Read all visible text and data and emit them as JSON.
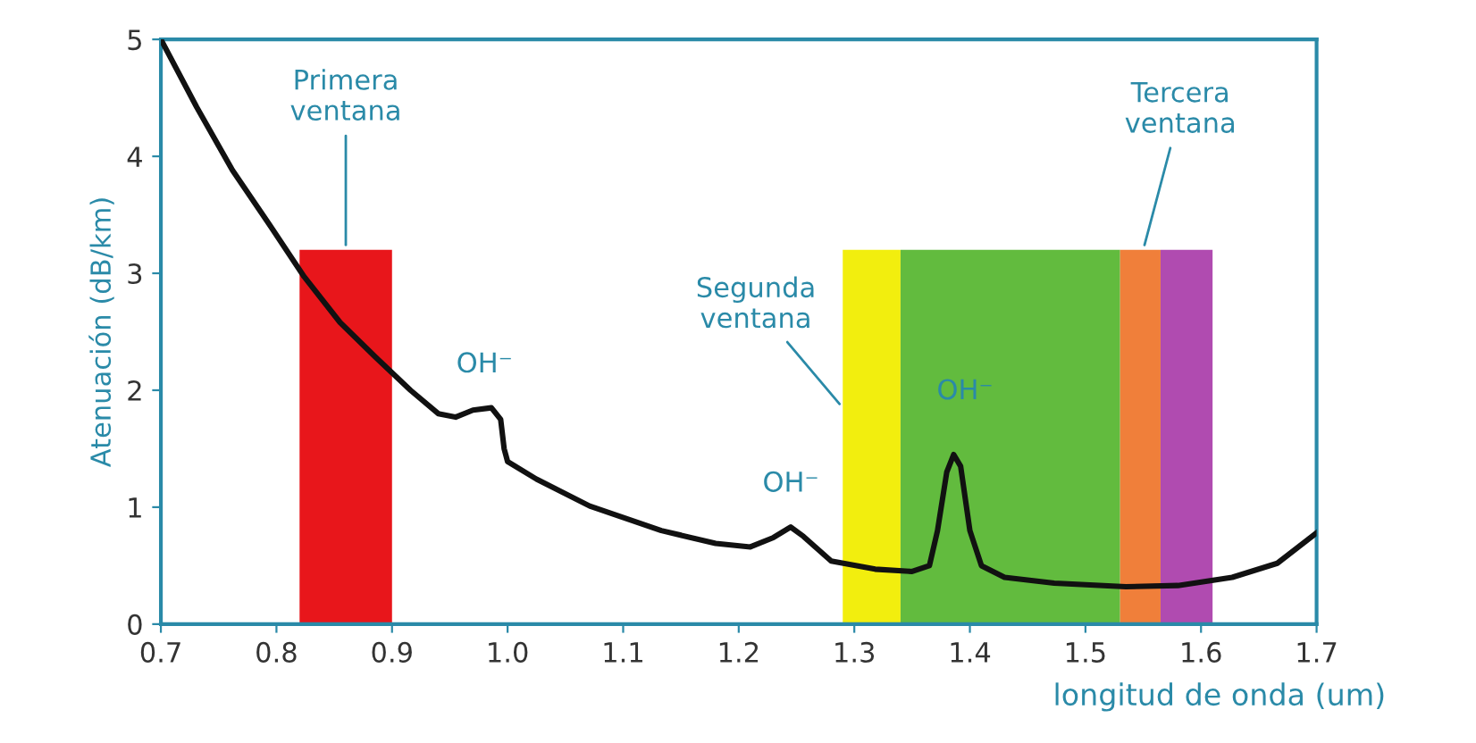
{
  "chart_data": {
    "type": "line",
    "xlabel": "longitud de onda (um)",
    "ylabel": "Atenuación (dB/km)",
    "xlim": [
      0.7,
      1.7
    ],
    "ylim": [
      0,
      5
    ],
    "xticks": [
      0.7,
      0.8,
      0.9,
      {
        "value": 1.0,
        "label": "1.0"
      },
      1.1,
      1.2,
      1.3,
      1.4,
      1.5,
      1.6,
      1.7
    ],
    "yticks": [
      0,
      1,
      2,
      3,
      4,
      5
    ],
    "grid": false,
    "legend": false,
    "series": [
      {
        "type": "area",
        "color": "#e8161b",
        "x": [
          0.82,
          0.9
        ],
        "values": [
          3.2,
          3.2
        ]
      },
      {
        "type": "area",
        "color": "#f2ee0e",
        "x": [
          1.29,
          1.34
        ],
        "values": [
          3.2,
          3.2
        ]
      },
      {
        "type": "area",
        "color": "#62bb3e",
        "x": [
          1.34,
          1.53
        ],
        "values": [
          3.2,
          3.2
        ]
      },
      {
        "type": "area",
        "color": "#f07f3a",
        "x": [
          1.53,
          1.565
        ],
        "values": [
          3.2,
          3.2
        ]
      },
      {
        "type": "area",
        "color": "#b04bb0",
        "x": [
          1.565,
          1.61
        ],
        "values": [
          3.2,
          3.2
        ]
      },
      {
        "color": "#111111",
        "x": [
          0.7,
          0.731,
          0.762,
          0.793,
          0.824,
          0.855,
          0.886,
          0.916,
          0.94,
          0.955,
          0.97,
          0.986,
          0.994,
          0.997,
          1.0,
          1.025,
          1.071,
          1.133,
          1.18,
          1.21,
          1.23,
          1.245,
          1.256,
          1.28,
          1.318,
          1.35,
          1.365,
          1.372,
          1.38,
          1.386,
          1.392,
          1.4,
          1.41,
          1.43,
          1.473,
          1.535,
          1.58,
          1.627,
          1.666,
          1.7
        ],
        "values": [
          5.0,
          4.42,
          3.88,
          3.43,
          2.97,
          2.58,
          2.28,
          2.0,
          1.8,
          1.77,
          1.83,
          1.85,
          1.75,
          1.5,
          1.39,
          1.24,
          1.01,
          0.8,
          0.69,
          0.66,
          0.74,
          0.83,
          0.75,
          0.54,
          0.47,
          0.45,
          0.5,
          0.8,
          1.3,
          1.45,
          1.35,
          0.8,
          0.5,
          0.4,
          0.35,
          0.32,
          0.33,
          0.4,
          0.52,
          0.78
        ]
      }
    ],
    "annotations": [
      {
        "text": "Primera\nventana",
        "x": 0.86,
        "y": 3.2
      },
      {
        "text": "OH⁻",
        "x": 0.98,
        "y": 1.85
      },
      {
        "text": "Segunda\nventana",
        "x": 1.29,
        "y": 1.85
      },
      {
        "text": "OH⁻",
        "x": 1.245,
        "y": 0.83
      },
      {
        "text": "OH⁻",
        "x": 1.385,
        "y": 1.45
      },
      {
        "text": "Tercera\nventana",
        "x": 1.55,
        "y": 3.2
      }
    ]
  }
}
